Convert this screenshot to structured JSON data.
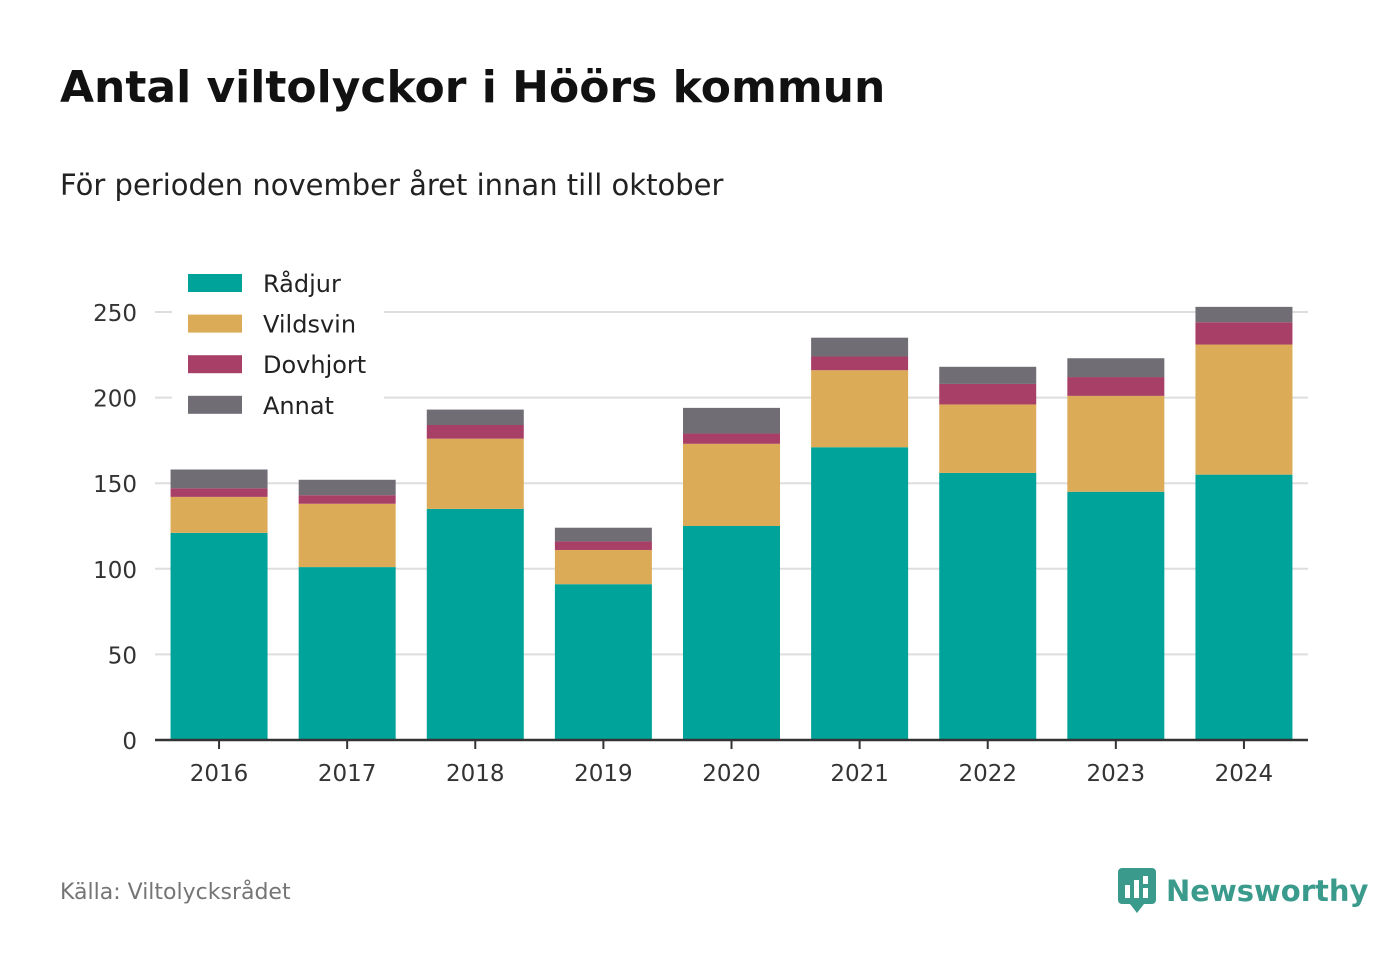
{
  "title": "Antal viltolyckor i Höörs kommun",
  "subtitle": "För perioden november året innan till oktober",
  "source": "Källa: Viltolycksrådet",
  "brand": {
    "name": "Newsworthy",
    "icon": "newsworthy-logo-icon",
    "color": "#3a9a8c"
  },
  "chart_data": {
    "type": "bar",
    "stacked": true,
    "categories": [
      "2016",
      "2017",
      "2018",
      "2019",
      "2020",
      "2021",
      "2022",
      "2023",
      "2024"
    ],
    "series": [
      {
        "name": "Rådjur",
        "color": "#00a39a",
        "values": [
          121,
          101,
          135,
          91,
          125,
          171,
          156,
          145,
          155
        ]
      },
      {
        "name": "Vildsvin",
        "color": "#dbab58",
        "values": [
          21,
          37,
          41,
          20,
          48,
          45,
          40,
          56,
          76
        ]
      },
      {
        "name": "Dovhjort",
        "color": "#a83f66",
        "values": [
          5,
          5,
          8,
          5,
          6,
          8,
          12,
          11,
          13
        ]
      },
      {
        "name": "Annat",
        "color": "#706d74",
        "values": [
          11,
          9,
          9,
          8,
          15,
          11,
          10,
          11,
          9
        ]
      }
    ],
    "ylim": [
      0,
      250
    ],
    "yticks": [
      "0",
      "50",
      "100",
      "150",
      "200",
      "250"
    ],
    "grid": true,
    "legend": "top-left"
  }
}
